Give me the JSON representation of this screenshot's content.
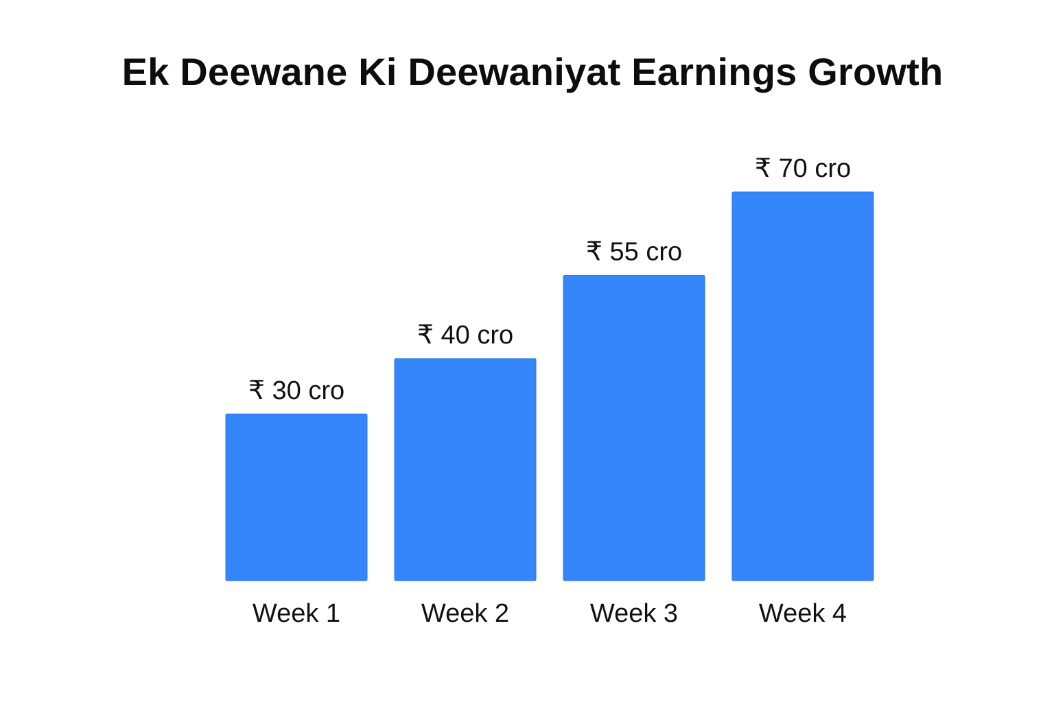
{
  "chart_data": {
    "type": "bar",
    "title": "Ek Deewane Ki Deewaniyat Earnings Growth",
    "categories": [
      "Week 1",
      "Week 2",
      "Week 3",
      "Week 4"
    ],
    "values": [
      30,
      40,
      55,
      70
    ],
    "data_labels": [
      "₹ 30 cro",
      "₹ 40 cro",
      "₹ 55 cro",
      "₹ 70 cro"
    ],
    "ylim": [
      0,
      70
    ],
    "grid": false,
    "bar_color": "#3586fb"
  }
}
